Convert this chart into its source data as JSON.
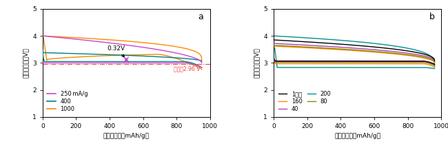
{
  "panel_a_label": "a",
  "panel_b_label": "b",
  "ylabel": "正極の電位（V）",
  "xlabel": "充放電容量（mAh/g）",
  "xlim": [
    0,
    1000
  ],
  "ylim": [
    1,
    5
  ],
  "yticks": [
    1,
    2,
    3,
    4,
    5
  ],
  "xticks": [
    0,
    200,
    400,
    600,
    800,
    1000
  ],
  "ref_voltage": 2.96,
  "annotation_text": "0.32V",
  "ref_label": "理論値2.96 V",
  "legend_a": [
    "250 mA/g",
    "400",
    "1000"
  ],
  "colors_a": [
    "#cc44cc",
    "#008080",
    "#ff8800"
  ],
  "colors_b": {
    "1": "#000000",
    "40": "#aa44aa",
    "80": "#888800",
    "160": "#ff8800",
    "200": "#009090"
  }
}
